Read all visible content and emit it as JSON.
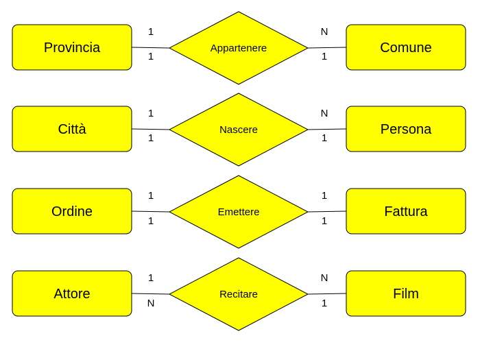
{
  "colors": {
    "fill": "#ffff00",
    "stroke": "#000000",
    "background": "#ffffff"
  },
  "rows": [
    {
      "left_entity": "Provincia",
      "relationship": "Appartenere",
      "right_entity": "Comune",
      "card_left_top": "1",
      "card_left_bottom": "1",
      "card_right_top": "N",
      "card_right_bottom": "1"
    },
    {
      "left_entity": "Città",
      "relationship": "Nascere",
      "right_entity": "Persona",
      "card_left_top": "1",
      "card_left_bottom": "1",
      "card_right_top": "N",
      "card_right_bottom": "1"
    },
    {
      "left_entity": "Ordine",
      "relationship": "Emettere",
      "right_entity": "Fattura",
      "card_left_top": "1",
      "card_left_bottom": "1",
      "card_right_top": "1",
      "card_right_bottom": "1"
    },
    {
      "left_entity": "Attore",
      "relationship": "Recitare",
      "right_entity": "Film",
      "card_left_top": "1",
      "card_left_bottom": "N",
      "card_right_top": "N",
      "card_right_bottom": "1"
    }
  ]
}
